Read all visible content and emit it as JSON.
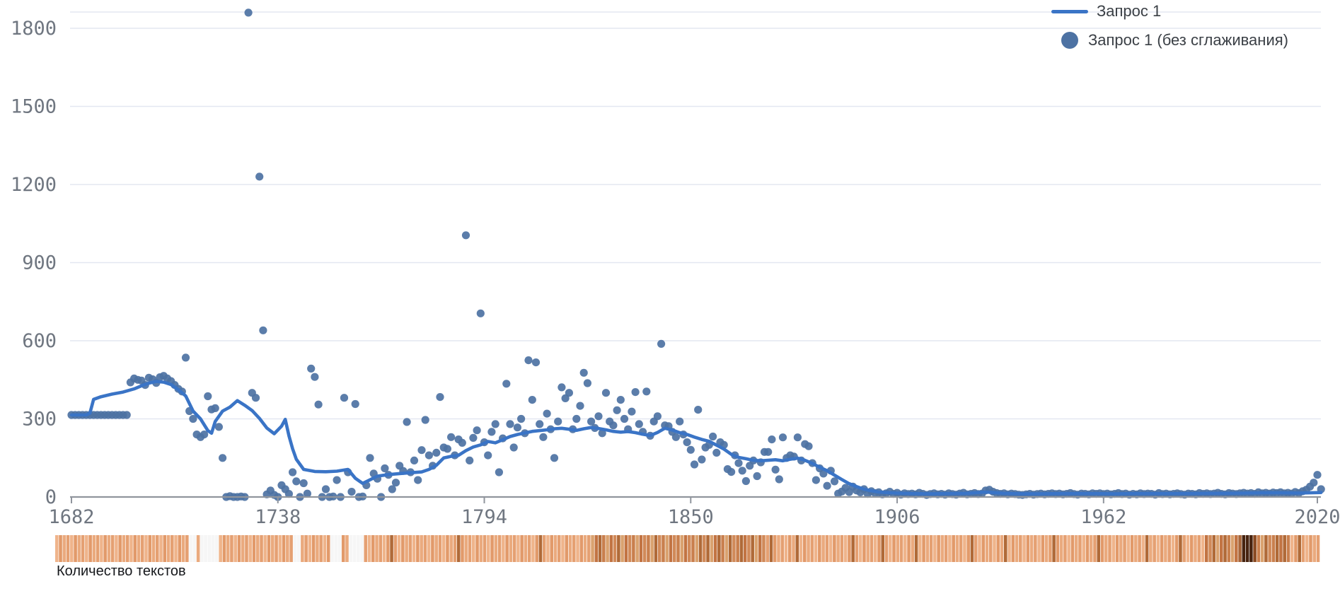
{
  "legend": {
    "items": [
      {
        "label": "Запрос 1",
        "type": "line"
      },
      {
        "label": "Запрос 1 (без сглаживания)",
        "type": "dot"
      }
    ]
  },
  "strip": {
    "label": "Количество текстов"
  },
  "colors": {
    "line": "#3a74c6",
    "dot": "#4d72a3",
    "grid": "#e3e7f1",
    "axis": "#90959d",
    "tick_text": "#6f7680",
    "legend_text": "#3b4046",
    "strip_gap": "#f6f6f6"
  },
  "chart_data": {
    "type": "line+scatter",
    "title": "",
    "xlabel": "",
    "ylabel": "",
    "xlim": [
      1682,
      2021
    ],
    "ylim": [
      0,
      1865
    ],
    "x_ticks": [
      1682,
      1738,
      1794,
      1850,
      1906,
      1962,
      2020
    ],
    "y_ticks": [
      0,
      300,
      600,
      900,
      1200,
      1500,
      1800
    ],
    "grid": "horizontal",
    "legend_position": "top-right",
    "series": [
      {
        "name": "Запрос 1",
        "type": "line",
        "color": "#3a74c6",
        "points": [
          [
            1682,
            315
          ],
          [
            1684,
            315
          ],
          [
            1686,
            315
          ],
          [
            1687,
            322
          ],
          [
            1688,
            375
          ],
          [
            1690,
            385
          ],
          [
            1693,
            395
          ],
          [
            1696,
            403
          ],
          [
            1699,
            415
          ],
          [
            1701,
            427
          ],
          [
            1703,
            437
          ],
          [
            1705,
            444
          ],
          [
            1707,
            441
          ],
          [
            1709,
            432
          ],
          [
            1711,
            412
          ],
          [
            1713,
            388
          ],
          [
            1715,
            330
          ],
          [
            1717,
            300
          ],
          [
            1719,
            255
          ],
          [
            1720,
            245
          ],
          [
            1721,
            290
          ],
          [
            1723,
            330
          ],
          [
            1725,
            345
          ],
          [
            1727,
            370
          ],
          [
            1729,
            352
          ],
          [
            1731,
            332
          ],
          [
            1733,
            302
          ],
          [
            1735,
            265
          ],
          [
            1737,
            243
          ],
          [
            1739,
            272
          ],
          [
            1740,
            298
          ],
          [
            1741,
            235
          ],
          [
            1742,
            185
          ],
          [
            1743,
            145
          ],
          [
            1745,
            106
          ],
          [
            1748,
            98
          ],
          [
            1751,
            97
          ],
          [
            1754,
            99
          ],
          [
            1757,
            106
          ],
          [
            1759,
            72
          ],
          [
            1761,
            52
          ],
          [
            1763,
            66
          ],
          [
            1765,
            80
          ],
          [
            1768,
            86
          ],
          [
            1771,
            90
          ],
          [
            1774,
            93
          ],
          [
            1777,
            96
          ],
          [
            1779,
            106
          ],
          [
            1781,
            122
          ],
          [
            1783,
            150
          ],
          [
            1785,
            156
          ],
          [
            1787,
            160
          ],
          [
            1789,
            178
          ],
          [
            1791,
            192
          ],
          [
            1793,
            200
          ],
          [
            1795,
            213
          ],
          [
            1797,
            208
          ],
          [
            1799,
            220
          ],
          [
            1801,
            232
          ],
          [
            1803,
            240
          ],
          [
            1805,
            246
          ],
          [
            1807,
            252
          ],
          [
            1809,
            255
          ],
          [
            1811,
            258
          ],
          [
            1813,
            262
          ],
          [
            1815,
            264
          ],
          [
            1817,
            260
          ],
          [
            1819,
            256
          ],
          [
            1821,
            262
          ],
          [
            1823,
            267
          ],
          [
            1825,
            263
          ],
          [
            1827,
            258
          ],
          [
            1829,
            252
          ],
          [
            1831,
            249
          ],
          [
            1833,
            251
          ],
          [
            1835,
            247
          ],
          [
            1837,
            241
          ],
          [
            1839,
            236
          ],
          [
            1841,
            248
          ],
          [
            1843,
            264
          ],
          [
            1845,
            257
          ],
          [
            1847,
            247
          ],
          [
            1849,
            240
          ],
          [
            1851,
            230
          ],
          [
            1853,
            221
          ],
          [
            1855,
            214
          ],
          [
            1857,
            199
          ],
          [
            1859,
            184
          ],
          [
            1861,
            164
          ],
          [
            1863,
            152
          ],
          [
            1865,
            147
          ],
          [
            1867,
            141
          ],
          [
            1869,
            139
          ],
          [
            1871,
            141
          ],
          [
            1873,
            143
          ],
          [
            1875,
            139
          ],
          [
            1877,
            145
          ],
          [
            1879,
            149
          ],
          [
            1881,
            141
          ],
          [
            1883,
            129
          ],
          [
            1885,
            114
          ],
          [
            1887,
            101
          ],
          [
            1889,
            84
          ],
          [
            1891,
            67
          ],
          [
            1893,
            51
          ],
          [
            1895,
            40
          ],
          [
            1897,
            30
          ],
          [
            1899,
            24
          ],
          [
            1901,
            19
          ],
          [
            1903,
            17
          ],
          [
            1906,
            15
          ],
          [
            1910,
            13
          ],
          [
            1915,
            12
          ],
          [
            1920,
            13
          ],
          [
            1925,
            14
          ],
          [
            1930,
            19
          ],
          [
            1935,
            14
          ],
          [
            1940,
            12
          ],
          [
            1945,
            12
          ],
          [
            1950,
            13
          ],
          [
            1955,
            13
          ],
          [
            1960,
            13
          ],
          [
            1965,
            12
          ],
          [
            1970,
            13
          ],
          [
            1975,
            13
          ],
          [
            1980,
            13
          ],
          [
            1985,
            13
          ],
          [
            1990,
            14
          ],
          [
            1995,
            14
          ],
          [
            2000,
            15
          ],
          [
            2005,
            16
          ],
          [
            2010,
            16
          ],
          [
            2015,
            15
          ],
          [
            2018,
            16
          ],
          [
            2021,
            17
          ]
        ]
      },
      {
        "name": "Запрос 1 (без сглаживания)",
        "type": "scatter",
        "color": "#4d72a3",
        "start_year": 1682,
        "values": [
          315,
          315,
          315,
          315,
          315,
          315,
          315,
          315,
          315,
          315,
          315,
          315,
          315,
          315,
          315,
          315,
          440,
          455,
          450,
          447,
          430,
          458,
          452,
          438,
          460,
          465,
          455,
          445,
          430,
          415,
          405,
          535,
          330,
          300,
          240,
          230,
          240,
          387,
          336,
          341,
          269,
          150,
          0,
          3,
          0,
          0,
          2,
          0,
          1860,
          400,
          381,
          1230,
          640,
          10,
          25,
          8,
          0,
          45,
          30,
          12,
          95,
          60,
          0,
          53,
          13,
          493,
          461,
          355,
          0,
          30,
          0,
          2,
          65,
          0,
          381,
          95,
          20,
          357,
          0,
          2,
          45,
          150,
          90,
          70,
          0,
          110,
          85,
          30,
          55,
          120,
          100,
          288,
          95,
          140,
          65,
          180,
          296,
          160,
          120,
          170,
          384,
          190,
          185,
          230,
          160,
          221,
          208,
          1005,
          140,
          227,
          256,
          705,
          210,
          160,
          250,
          280,
          95,
          225,
          435,
          280,
          190,
          267,
          300,
          245,
          525,
          373,
          517,
          280,
          230,
          320,
          260,
          150,
          290,
          421,
          379,
          400,
          260,
          300,
          350,
          477,
          437,
          290,
          265,
          310,
          245,
          400,
          290,
          275,
          333,
          373,
          300,
          260,
          328,
          403,
          280,
          250,
          405,
          235,
          290,
          310,
          588,
          275,
          272,
          250,
          230,
          290,
          240,
          210,
          181,
          125,
          335,
          144,
          190,
          200,
          232,
          170,
          210,
          200,
          107,
          96,
          160,
          130,
          101,
          61,
          120,
          140,
          80,
          133,
          173,
          173,
          221,
          105,
          68,
          229,
          150,
          160,
          155,
          229,
          140,
          203,
          195,
          130,
          65,
          110,
          90,
          43,
          101,
          60,
          13,
          21,
          35,
          19,
          40,
          25,
          18,
          30,
          12,
          22,
          15,
          18,
          10,
          14,
          20,
          12,
          16,
          9,
          14,
          11,
          13,
          10,
          16,
          12,
          8,
          11,
          14,
          10,
          12,
          9,
          14,
          11,
          9,
          13,
          16,
          10,
          12,
          15,
          11,
          13,
          25,
          28,
          20,
          15,
          12,
          14,
          10,
          13,
          11,
          9,
          8,
          10,
          12,
          9,
          11,
          13,
          10,
          12,
          14,
          11,
          13,
          10,
          12,
          15,
          11,
          9,
          13,
          12,
          10,
          14,
          12,
          14,
          11,
          13,
          10,
          12,
          15,
          11,
          13,
          9,
          12,
          10,
          14,
          11,
          13,
          12,
          9,
          15,
          11,
          13,
          10,
          12,
          14,
          11,
          9,
          13,
          12,
          10,
          15,
          12,
          14,
          11,
          13,
          16,
          12,
          10,
          15,
          13,
          11,
          14,
          16,
          13,
          15,
          12,
          18,
          14,
          16,
          13,
          17,
          15,
          18,
          14,
          16,
          13,
          19,
          15,
          22,
          28,
          40,
          55,
          85,
          30
        ]
      }
    ],
    "text_count_strip": {
      "label": "Количество текстов",
      "segments": [
        {
          "from": 1682,
          "to": 1717,
          "level": 2
        },
        {
          "from": 1718,
          "to": 1719,
          "level": 0
        },
        {
          "from": 1720,
          "to": 1720,
          "level": 2
        },
        {
          "from": 1721,
          "to": 1725,
          "level": 0
        },
        {
          "from": 1726,
          "to": 1745,
          "level": 2
        },
        {
          "from": 1746,
          "to": 1747,
          "level": 0
        },
        {
          "from": 1748,
          "to": 1755,
          "level": 2
        },
        {
          "from": 1756,
          "to": 1758,
          "level": 0
        },
        {
          "from": 1759,
          "to": 1760,
          "level": 2
        },
        {
          "from": 1761,
          "to": 1764,
          "level": 0
        },
        {
          "from": 1765,
          "to": 1825,
          "level": 2
        },
        {
          "from": 1826,
          "to": 1872,
          "level": 3
        },
        {
          "from": 1873,
          "to": 1990,
          "level": 2
        },
        {
          "from": 1991,
          "to": 1999,
          "level": 3
        },
        {
          "from": 2000,
          "to": 2004,
          "level": 4
        },
        {
          "from": 2005,
          "to": 2013,
          "level": 3
        },
        {
          "from": 2014,
          "to": 2021,
          "level": 2
        }
      ],
      "dark_years": [
        1772,
        1790,
        1812,
        1828,
        1833,
        1843,
        1855,
        1857,
        1860,
        1863,
        1866,
        1869,
        1874,
        1881,
        1896,
        1904,
        1913,
        1928,
        1937,
        1950,
        1962,
        1975,
        1984,
        1993,
        1996,
        2007,
        2010,
        2012,
        2016
      ],
      "darkest_years": [
        2001,
        2002,
        2003
      ]
    }
  }
}
